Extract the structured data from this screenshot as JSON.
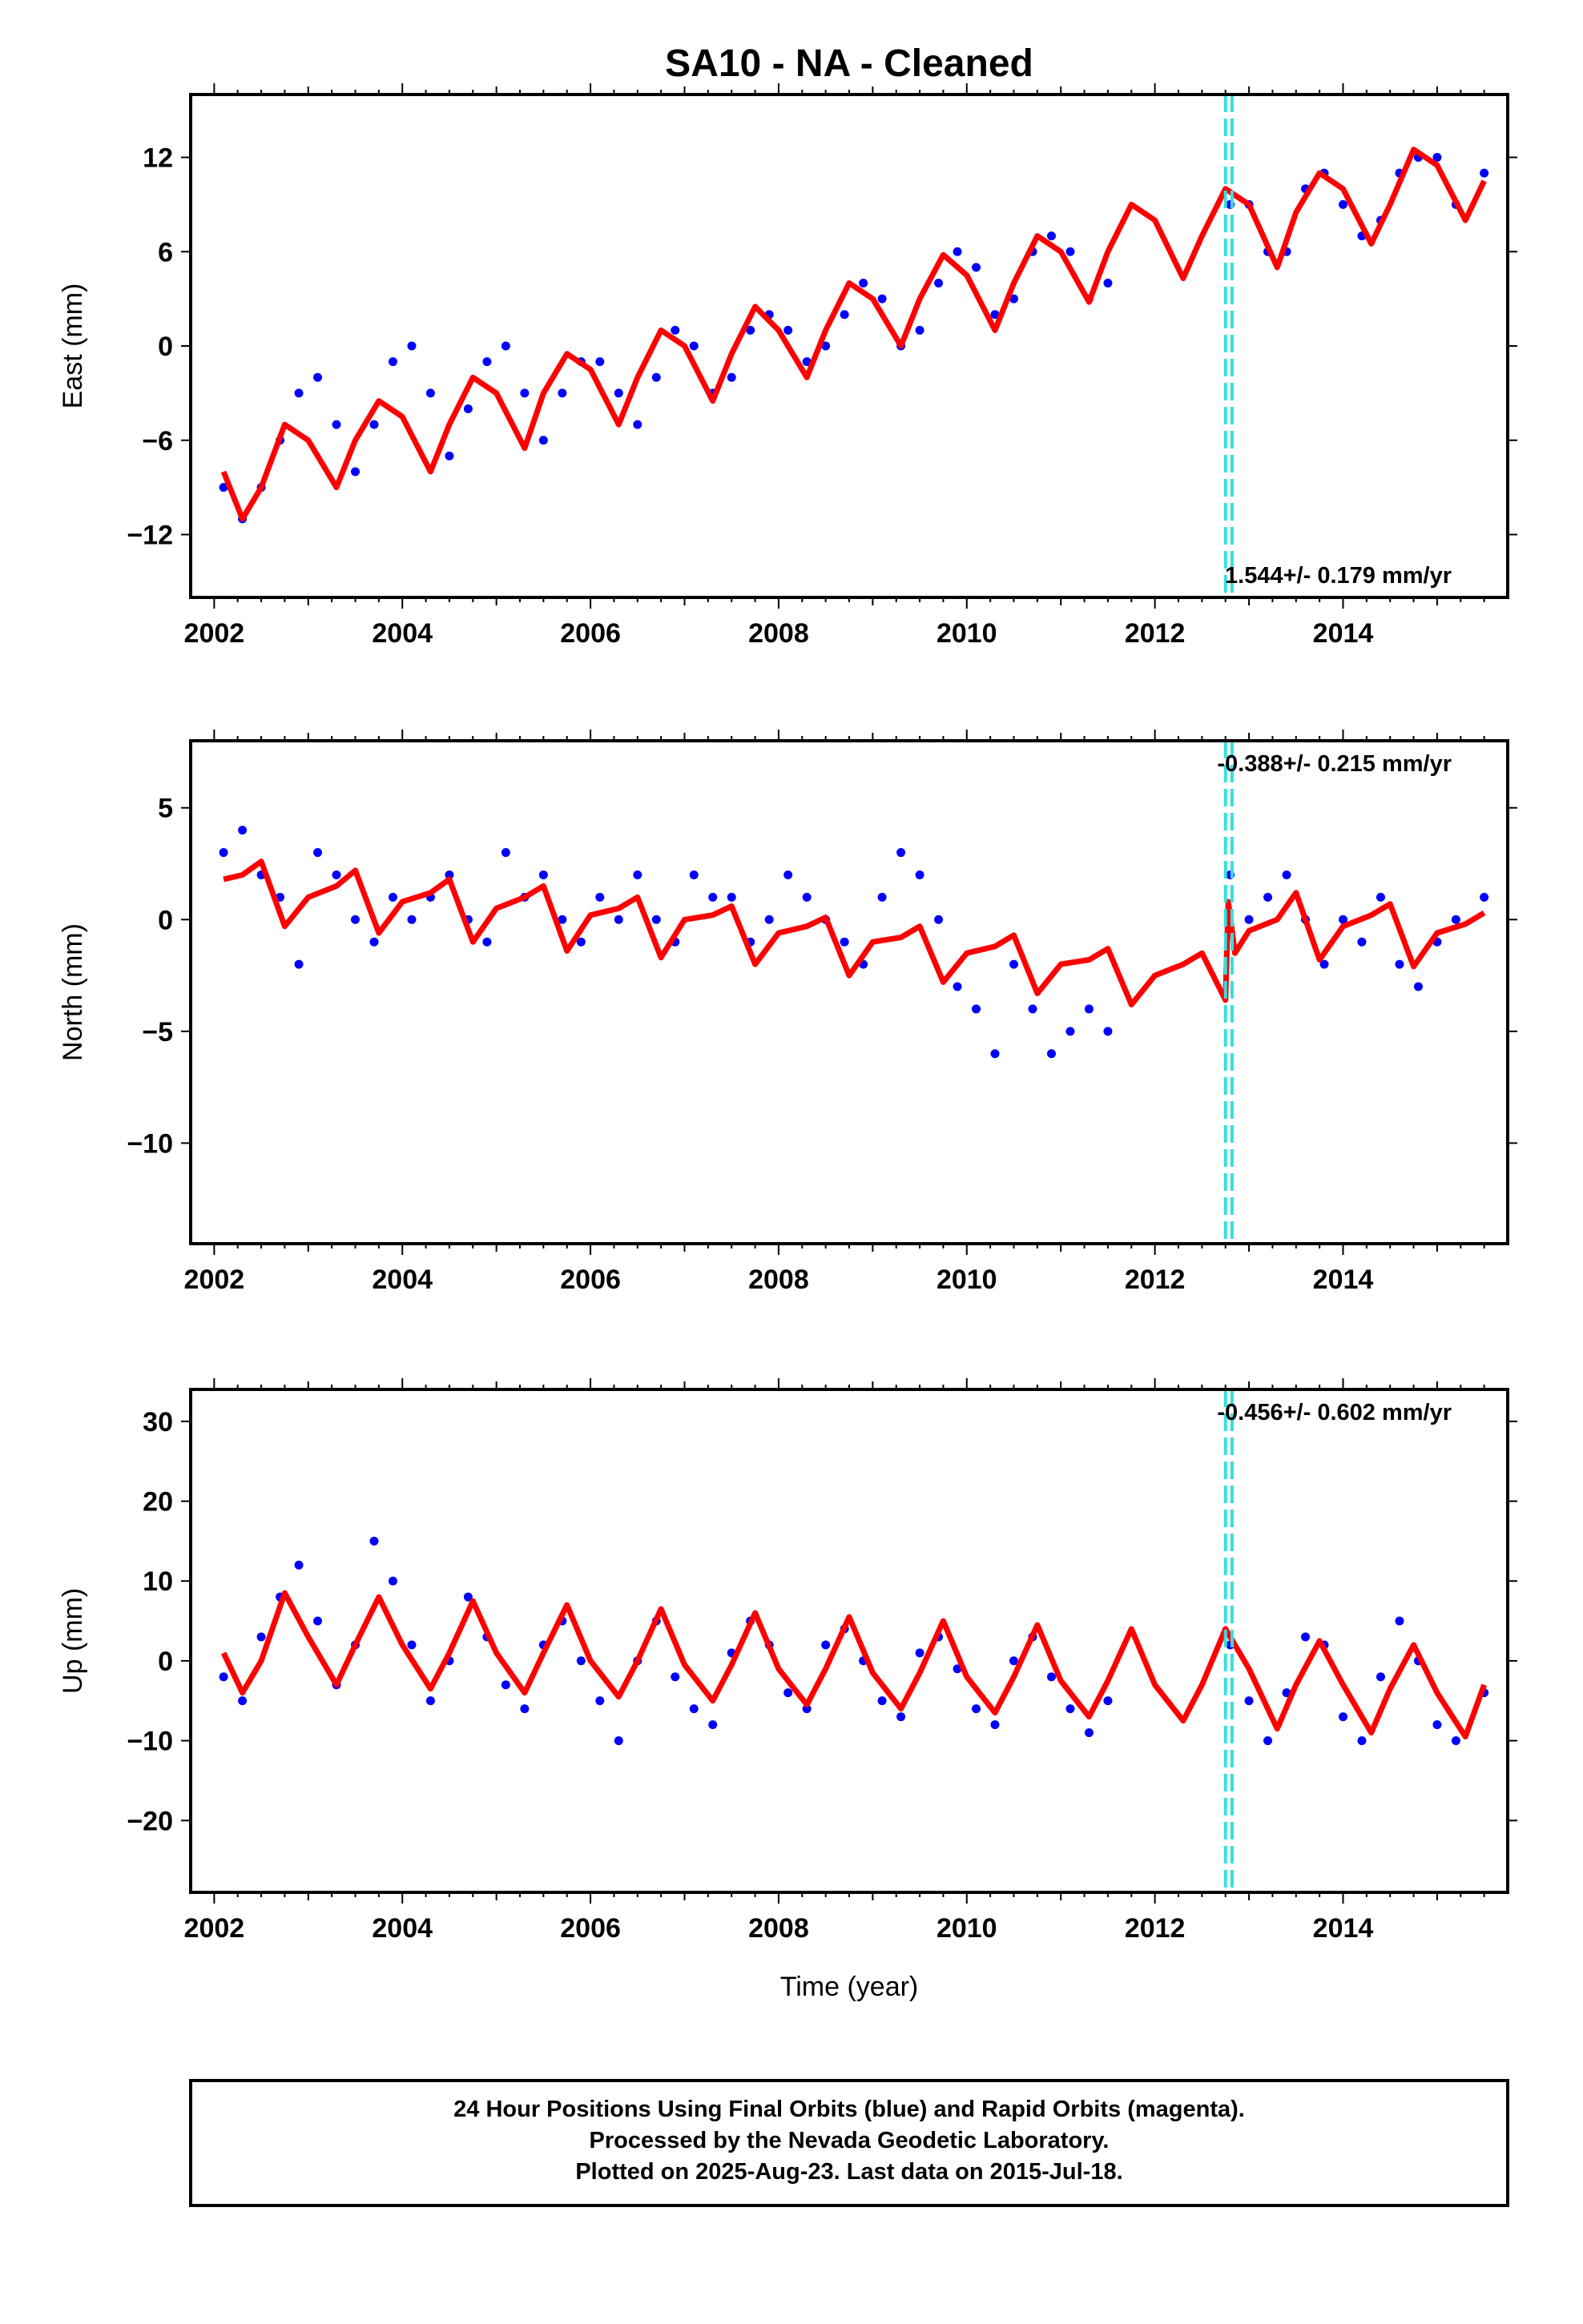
{
  "title": "SA10  - NA - Cleaned",
  "xlabel": "Time (year)",
  "footer": [
    "24 Hour Positions Using Final Orbits (blue) and Rapid Orbits (magenta).",
    "Processed by the Nevada Geodetic Laboratory.",
    "Plotted on 2025-Aug-23. Last data on 2015-Jul-18."
  ],
  "colors": {
    "data": "#0000ff",
    "model": "#ff0000",
    "event": "#35e0e0",
    "frame": "#000000"
  },
  "chart_data": [
    {
      "type": "scatter",
      "component": "east",
      "ylabel": "East (mm)",
      "rate": "1.544+/- 0.179 mm/yr",
      "xlim": [
        2001.75,
        2015.75
      ],
      "ylim": [
        -16,
        16
      ],
      "xticks": [
        2002,
        2004,
        2006,
        2008,
        2010,
        2012,
        2014
      ],
      "yticks": [
        -12,
        -6,
        0,
        6,
        12
      ],
      "ytick_labels": [
        "−12",
        "−6",
        "0",
        "6",
        "12"
      ],
      "event_lines": [
        2012.75,
        2012.82
      ],
      "series": [
        {
          "kind": "points",
          "x": [
            2002.1,
            2002.3,
            2002.5,
            2002.7,
            2002.9,
            2003.1,
            2003.3,
            2003.5,
            2003.7,
            2003.9,
            2004.1,
            2004.3,
            2004.5,
            2004.7,
            2004.9,
            2005.1,
            2005.3,
            2005.5,
            2005.7,
            2005.9,
            2006.1,
            2006.3,
            2006.5,
            2006.7,
            2006.9,
            2007.1,
            2007.3,
            2007.5,
            2007.7,
            2007.9,
            2008.1,
            2008.3,
            2008.5,
            2008.7,
            2008.9,
            2009.1,
            2009.3,
            2009.5,
            2009.7,
            2009.9,
            2010.1,
            2010.3,
            2010.5,
            2010.7,
            2010.9,
            2011.1,
            2011.3,
            2011.5,
            2012.8,
            2013.0,
            2013.2,
            2013.4,
            2013.6,
            2013.8,
            2014.0,
            2014.2,
            2014.4,
            2014.6,
            2014.8,
            2015.0,
            2015.2,
            2015.5
          ],
          "y": [
            -9,
            -11,
            -9,
            -6,
            -3,
            -2,
            -5,
            -8,
            -5,
            -1,
            0,
            -3,
            -7,
            -4,
            -1,
            0,
            -3,
            -6,
            -3,
            -1,
            -1,
            -3,
            -5,
            -2,
            1,
            0,
            -3,
            -2,
            1,
            2,
            1,
            -1,
            0,
            2,
            4,
            3,
            0,
            1,
            4,
            6,
            5,
            2,
            3,
            6,
            7,
            6,
            3,
            4,
            9,
            9,
            6,
            6,
            10,
            11,
            9,
            7,
            8,
            11,
            12,
            12,
            9,
            11
          ]
        },
        {
          "kind": "model",
          "x": [
            2002.1,
            2002.3,
            2002.5,
            2002.75,
            2003.0,
            2003.3,
            2003.5,
            2003.75,
            2004.0,
            2004.3,
            2004.5,
            2004.75,
            2005.0,
            2005.3,
            2005.5,
            2005.75,
            2006.0,
            2006.3,
            2006.5,
            2006.75,
            2007.0,
            2007.3,
            2007.5,
            2007.75,
            2008.0,
            2008.3,
            2008.5,
            2008.75,
            2009.0,
            2009.3,
            2009.5,
            2009.75,
            2010.0,
            2010.3,
            2010.5,
            2010.75,
            2011.0,
            2011.3,
            2011.5,
            2011.75,
            2012.0,
            2012.3,
            2012.5,
            2012.75,
            2013.0,
            2013.3,
            2013.5,
            2013.75,
            2014.0,
            2014.3,
            2014.5,
            2014.75,
            2015.0,
            2015.3,
            2015.5
          ],
          "y": [
            -8,
            -11,
            -9,
            -5,
            -6,
            -9,
            -6,
            -3.5,
            -4.5,
            -8,
            -5,
            -2,
            -3,
            -6.5,
            -3,
            -0.5,
            -1.5,
            -5,
            -2,
            1,
            0,
            -3.5,
            -0.5,
            2.5,
            1,
            -2,
            1,
            4,
            3,
            0,
            3,
            5.8,
            4.5,
            1,
            4,
            7,
            6,
            2.8,
            6,
            9,
            8,
            4.3,
            7,
            10,
            9,
            5,
            8.5,
            11,
            10,
            6.5,
            9,
            12.5,
            11.5,
            8,
            10.5
          ]
        }
      ]
    },
    {
      "type": "scatter",
      "component": "north",
      "ylabel": "North (mm)",
      "rate": "-0.388+/- 0.215 mm/yr",
      "xlim": [
        2001.75,
        2015.75
      ],
      "ylim": [
        -14.5,
        8
      ],
      "xticks": [
        2002,
        2004,
        2006,
        2008,
        2010,
        2012,
        2014
      ],
      "yticks": [
        -10,
        -5,
        0,
        5
      ],
      "ytick_labels": [
        "−10",
        "−5",
        "0",
        "5"
      ],
      "event_lines": [
        2012.75,
        2012.82
      ],
      "series": [
        {
          "kind": "points",
          "x": [
            2002.1,
            2002.3,
            2002.5,
            2002.7,
            2002.9,
            2003.1,
            2003.3,
            2003.5,
            2003.7,
            2003.9,
            2004.1,
            2004.3,
            2004.5,
            2004.7,
            2004.9,
            2005.1,
            2005.3,
            2005.5,
            2005.7,
            2005.9,
            2006.1,
            2006.3,
            2006.5,
            2006.7,
            2006.9,
            2007.1,
            2007.3,
            2007.5,
            2007.7,
            2007.9,
            2008.1,
            2008.3,
            2008.5,
            2008.7,
            2008.9,
            2009.1,
            2009.3,
            2009.5,
            2009.7,
            2009.9,
            2010.1,
            2010.3,
            2010.5,
            2010.7,
            2010.9,
            2011.1,
            2011.3,
            2011.5,
            2012.8,
            2013.0,
            2013.2,
            2013.4,
            2013.6,
            2013.8,
            2014.0,
            2014.2,
            2014.4,
            2014.6,
            2014.8,
            2015.0,
            2015.2,
            2015.5
          ],
          "y": [
            3,
            4,
            2,
            1,
            -2,
            3,
            2,
            0,
            -1,
            1,
            0,
            1,
            2,
            0,
            -1,
            3,
            1,
            2,
            0,
            -1,
            1,
            0,
            2,
            0,
            -1,
            2,
            1,
            1,
            -1,
            0,
            2,
            1,
            0,
            -1,
            -2,
            1,
            3,
            2,
            0,
            -3,
            -4,
            -6,
            -2,
            -4,
            -6,
            -5,
            -4,
            -5,
            2,
            0,
            1,
            2,
            0,
            -2,
            0,
            -1,
            1,
            -2,
            -3,
            -1,
            0,
            1
          ]
        },
        {
          "kind": "model",
          "x": [
            2002.1,
            2002.3,
            2002.5,
            2002.75,
            2003.0,
            2003.3,
            2003.5,
            2003.75,
            2004.0,
            2004.3,
            2004.5,
            2004.75,
            2005.0,
            2005.3,
            2005.5,
            2005.75,
            2006.0,
            2006.3,
            2006.5,
            2006.75,
            2007.0,
            2007.3,
            2007.5,
            2007.75,
            2008.0,
            2008.3,
            2008.5,
            2008.75,
            2009.0,
            2009.3,
            2009.5,
            2009.75,
            2010.0,
            2010.3,
            2010.5,
            2010.75,
            2011.0,
            2011.3,
            2011.5,
            2011.75,
            2012.0,
            2012.3,
            2012.5,
            2012.75,
            2012.78,
            2012.85,
            2013.0,
            2013.3,
            2013.5,
            2013.75,
            2014.0,
            2014.3,
            2014.5,
            2014.75,
            2015.0,
            2015.3,
            2015.5
          ],
          "y": [
            1.8,
            2,
            2.6,
            -0.3,
            1,
            1.5,
            2.2,
            -0.6,
            0.8,
            1.2,
            1.8,
            -1,
            0.5,
            1,
            1.5,
            -1.4,
            0.2,
            0.5,
            1,
            -1.7,
            0,
            0.2,
            0.6,
            -2,
            -0.6,
            -0.3,
            0.1,
            -2.5,
            -1,
            -0.8,
            -0.3,
            -2.8,
            -1.5,
            -1.2,
            -0.7,
            -3.3,
            -2,
            -1.8,
            -1.3,
            -3.8,
            -2.5,
            -2,
            -1.5,
            -3.6,
            0.8,
            -1.5,
            -0.5,
            0,
            1.2,
            -1.8,
            -0.3,
            0.2,
            0.7,
            -2.1,
            -0.6,
            -0.2,
            0.3
          ]
        }
      ]
    },
    {
      "type": "scatter",
      "component": "up",
      "ylabel": "Up (mm)",
      "rate": "-0.456+/- 0.602 mm/yr",
      "xlim": [
        2001.75,
        2015.75
      ],
      "ylim": [
        -29,
        34
      ],
      "xticks": [
        2002,
        2004,
        2006,
        2008,
        2010,
        2012,
        2014
      ],
      "yticks": [
        -20,
        -10,
        0,
        10,
        20,
        30
      ],
      "ytick_labels": [
        "−20",
        "−10",
        "0",
        "10",
        "20",
        "30"
      ],
      "event_lines": [
        2012.75,
        2012.82
      ],
      "series": [
        {
          "kind": "points",
          "x": [
            2002.1,
            2002.3,
            2002.5,
            2002.7,
            2002.9,
            2003.1,
            2003.3,
            2003.5,
            2003.7,
            2003.9,
            2004.1,
            2004.3,
            2004.5,
            2004.7,
            2004.9,
            2005.1,
            2005.3,
            2005.5,
            2005.7,
            2005.9,
            2006.1,
            2006.3,
            2006.5,
            2006.7,
            2006.9,
            2007.1,
            2007.3,
            2007.5,
            2007.7,
            2007.9,
            2008.1,
            2008.3,
            2008.5,
            2008.7,
            2008.9,
            2009.1,
            2009.3,
            2009.5,
            2009.7,
            2009.9,
            2010.1,
            2010.3,
            2010.5,
            2010.7,
            2010.9,
            2011.1,
            2011.3,
            2011.5,
            2012.8,
            2013.0,
            2013.2,
            2013.4,
            2013.6,
            2013.8,
            2014.0,
            2014.2,
            2014.4,
            2014.6,
            2014.8,
            2015.0,
            2015.2,
            2015.5
          ],
          "y": [
            -2,
            -5,
            3,
            8,
            12,
            5,
            -3,
            2,
            15,
            10,
            2,
            -5,
            0,
            8,
            3,
            -3,
            -6,
            2,
            5,
            0,
            -5,
            -10,
            0,
            5,
            -2,
            -6,
            -8,
            1,
            5,
            2,
            -4,
            -6,
            2,
            4,
            0,
            -5,
            -7,
            1,
            3,
            -1,
            -6,
            -8,
            0,
            3,
            -2,
            -6,
            -9,
            -5,
            2,
            -5,
            -10,
            -4,
            3,
            2,
            -7,
            -10,
            -2,
            5,
            0,
            -8,
            -10,
            -4
          ]
        },
        {
          "kind": "model",
          "x": [
            2002.1,
            2002.3,
            2002.5,
            2002.75,
            2003.0,
            2003.3,
            2003.5,
            2003.75,
            2004.0,
            2004.3,
            2004.5,
            2004.75,
            2005.0,
            2005.3,
            2005.5,
            2005.75,
            2006.0,
            2006.3,
            2006.5,
            2006.75,
            2007.0,
            2007.3,
            2007.5,
            2007.75,
            2008.0,
            2008.3,
            2008.5,
            2008.75,
            2009.0,
            2009.3,
            2009.5,
            2009.75,
            2010.0,
            2010.3,
            2010.5,
            2010.75,
            2011.0,
            2011.3,
            2011.5,
            2011.75,
            2012.0,
            2012.3,
            2012.5,
            2012.75,
            2013.0,
            2013.3,
            2013.5,
            2013.75,
            2014.0,
            2014.3,
            2014.5,
            2014.75,
            2015.0,
            2015.3,
            2015.5
          ],
          "y": [
            1,
            -4,
            0,
            8.5,
            3,
            -3,
            2,
            8,
            2,
            -3.5,
            1,
            7.5,
            1,
            -4,
            1,
            7,
            0,
            -4.5,
            0,
            6.5,
            -0.5,
            -5,
            -0.5,
            6,
            -1,
            -5.5,
            -1,
            5.5,
            -1.5,
            -6,
            -1.5,
            5,
            -2,
            -6.5,
            -2,
            4.5,
            -2.5,
            -7,
            -2.5,
            4,
            -3,
            -7.5,
            -3,
            4,
            -1,
            -8.5,
            -3,
            2.5,
            -3,
            -9,
            -3.5,
            2,
            -4,
            -9.5,
            -3
          ]
        }
      ]
    }
  ]
}
